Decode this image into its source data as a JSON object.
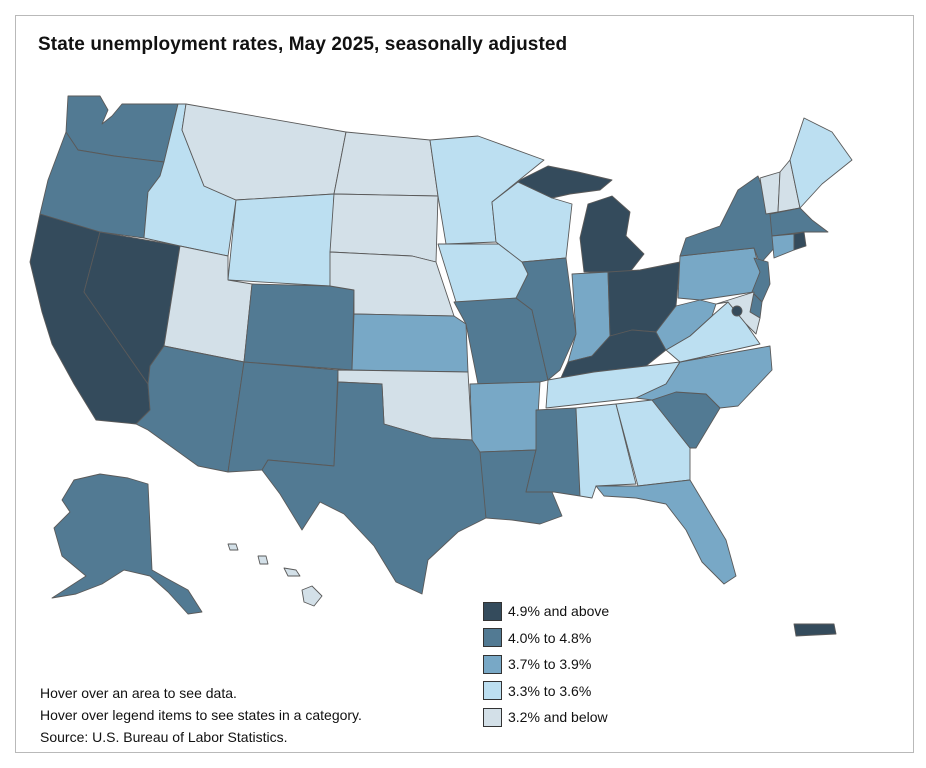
{
  "title": "State unemployment rates, May 2025, seasonally adjusted",
  "colors": {
    "cat1": "#344b5c",
    "cat2": "#527a93",
    "cat3": "#78a8c6",
    "cat4": "#bcdff1",
    "cat5": "#d3e0e8",
    "border": "#5a5a5a"
  },
  "legend": [
    {
      "label": "4.9% and above",
      "category": "cat1"
    },
    {
      "label": "4.0% to 4.8%",
      "category": "cat2"
    },
    {
      "label": "3.7% to 3.9%",
      "category": "cat3"
    },
    {
      "label": "3.3% to 3.6%",
      "category": "cat4"
    },
    {
      "label": "3.2% and below",
      "category": "cat5"
    }
  ],
  "states": {
    "WA": "cat2",
    "OR": "cat2",
    "CA": "cat1",
    "NV": "cat1",
    "ID": "cat4",
    "MT": "cat5",
    "WY": "cat4",
    "UT": "cat5",
    "AZ": "cat2",
    "CO": "cat2",
    "NM": "cat2",
    "ND": "cat5",
    "SD": "cat5",
    "NE": "cat5",
    "KS": "cat3",
    "OK": "cat5",
    "TX": "cat2",
    "MN": "cat4",
    "IA": "cat4",
    "MO": "cat2",
    "AR": "cat3",
    "LA": "cat2",
    "WI": "cat4",
    "IL": "cat2",
    "MS": "cat2",
    "MI": "cat1",
    "IN": "cat3",
    "KY": "cat1",
    "TN": "cat4",
    "AL": "cat4",
    "OH": "cat1",
    "GA": "cat4",
    "FL": "cat3",
    "SC": "cat2",
    "NC": "cat3",
    "VA": "cat4",
    "WV": "cat3",
    "PA": "cat3",
    "NY": "cat2",
    "VT": "cat5",
    "NH": "cat5",
    "ME": "cat4",
    "MA": "cat2",
    "RI": "cat1",
    "CT": "cat3",
    "NJ": "cat2",
    "DE": "cat2",
    "MD": "cat5",
    "DC": "cat1",
    "AK": "cat2",
    "HI": "cat5",
    "PR": "cat1"
  },
  "notes": [
    "Hover over an area to see data.",
    "Hover over legend items to see states in a category.",
    "Source: U.S. Bureau of Labor Statistics."
  ]
}
